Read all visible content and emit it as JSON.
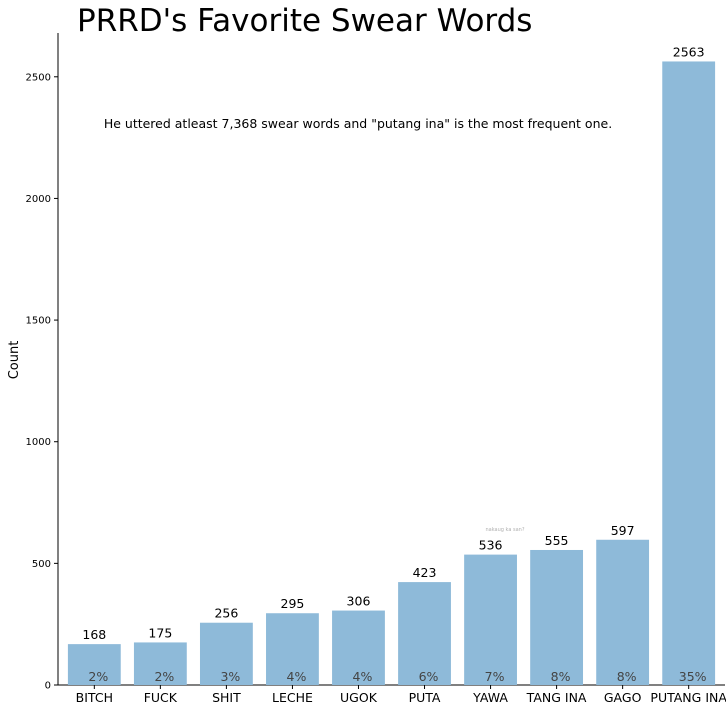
{
  "chart_data": {
    "type": "bar",
    "title": "PRRD's Favorite Swear Words",
    "annotation": "He uttered atleast 7,368 swear words and \"putang ina\" is the most frequent one.",
    "note": "nakaug ka san?",
    "xlabel": "",
    "ylabel": "Count",
    "ylim": [
      0,
      2680
    ],
    "yticks": [
      0,
      500,
      1000,
      1500,
      2000,
      2500
    ],
    "categories": [
      "BITCH",
      "FUCK",
      "SHIT",
      "LECHE",
      "UGOK",
      "PUTA",
      "YAWA",
      "TANG INA",
      "GAGO",
      "PUTANG INA"
    ],
    "values": [
      168,
      175,
      256,
      295,
      306,
      423,
      536,
      555,
      597,
      2563
    ],
    "percent_labels": [
      "2%",
      "2%",
      "3%",
      "4%",
      "4%",
      "6%",
      "7%",
      "8%",
      "8%",
      "35%"
    ],
    "bar_color": "#8ebad9",
    "grid": false
  }
}
